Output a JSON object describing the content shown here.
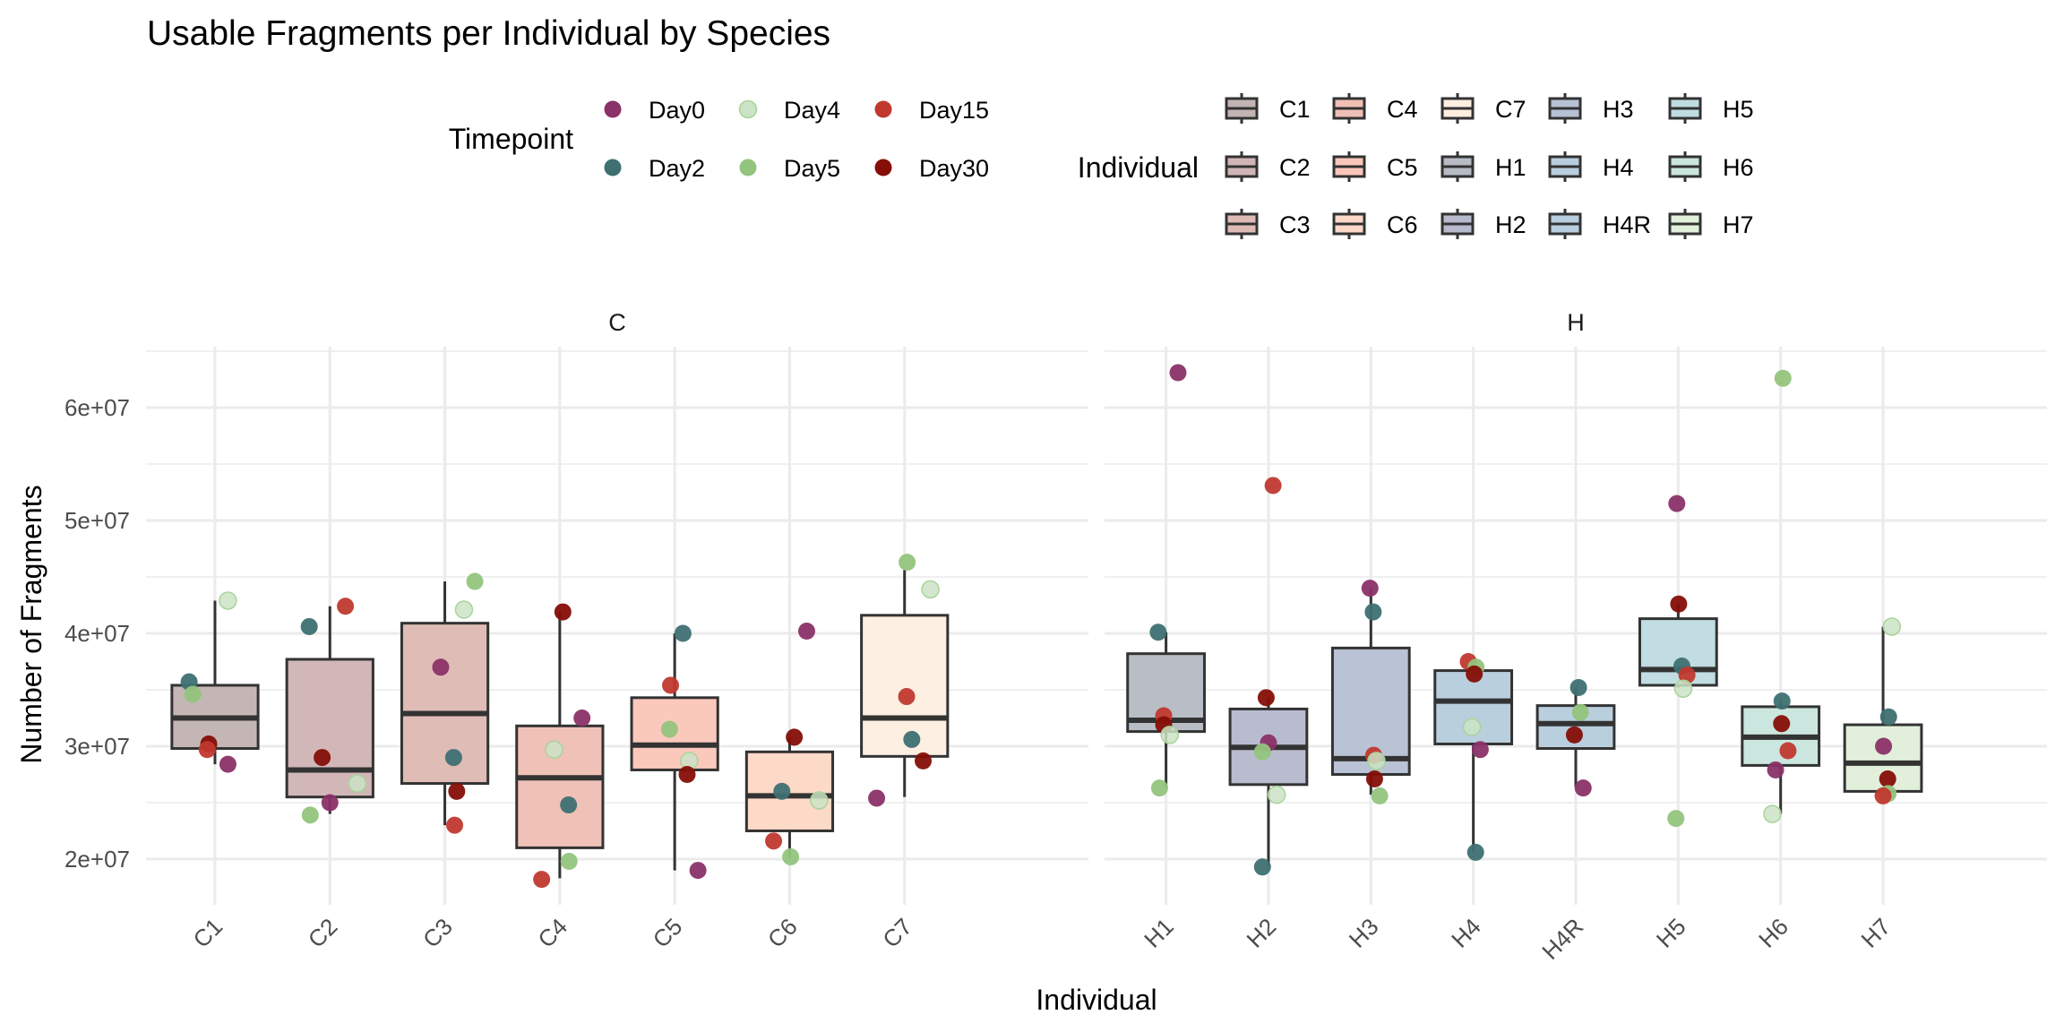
{
  "chart_data": {
    "type": "boxplot",
    "title": "Usable Fragments per Individual by Species",
    "xlabel": "Individual",
    "ylabel": "Number of Fragments",
    "ylim": [
      15950000,
      65400000
    ],
    "yticks": [
      20000000,
      30000000,
      40000000,
      50000000,
      60000000
    ],
    "ytick_labels": [
      "2e+07",
      "3e+07",
      "4e+07",
      "5e+07",
      "6e+07"
    ],
    "grid": true,
    "facets": [
      {
        "label": "C",
        "categories": [
          "C1",
          "C2",
          "C3",
          "C4",
          "C5",
          "C6",
          "C7"
        ]
      },
      {
        "label": "H",
        "categories": [
          "H1",
          "H2",
          "H3",
          "H4",
          "H4R",
          "H5",
          "H6",
          "H7"
        ]
      }
    ],
    "legends": [
      {
        "title": "Timepoint",
        "placement": "top",
        "entries": [
          {
            "label": "Day0",
            "color": "#8B3268"
          },
          {
            "label": "Day2",
            "color": "#3E7072"
          },
          {
            "label": "Day4",
            "color": "#CBE3C6"
          },
          {
            "label": "Day5",
            "color": "#93C47D"
          },
          {
            "label": "Day15",
            "color": "#C0392F"
          },
          {
            "label": "Day30",
            "color": "#850E07"
          }
        ]
      },
      {
        "title": "Individual",
        "placement": "top",
        "entries": [
          {
            "label": "C1",
            "color": "#C2B4B3"
          },
          {
            "label": "C2",
            "color": "#D1B5B6"
          },
          {
            "label": "C3",
            "color": "#DFBAB5"
          },
          {
            "label": "C4",
            "color": "#EFBFB5"
          },
          {
            "label": "C5",
            "color": "#FBC6BA"
          },
          {
            "label": "C6",
            "color": "#FDD8C6"
          },
          {
            "label": "C7",
            "color": "#FDEEE0"
          },
          {
            "label": "H1",
            "color": "#B6BBC4"
          },
          {
            "label": "H2",
            "color": "#B7BACD"
          },
          {
            "label": "H3",
            "color": "#B7C1D4"
          },
          {
            "label": "H4",
            "color": "#B8CDDD"
          },
          {
            "label": "H4R",
            "color": "#B8CDDD"
          },
          {
            "label": "H5",
            "color": "#BFDCE0"
          },
          {
            "label": "H6",
            "color": "#C9E5DD"
          },
          {
            "label": "H7",
            "color": "#E1F0DA"
          }
        ]
      }
    ],
    "boxes": [
      {
        "individual": "C1",
        "facet": "C",
        "whisker_low": 28.4,
        "q1": 29.8,
        "median": 32.5,
        "q3": 35.4,
        "whisker_high": 42.9
      },
      {
        "individual": "C2",
        "facet": "C",
        "whisker_low": 24.0,
        "q1": 25.5,
        "median": 27.9,
        "q3": 37.7,
        "whisker_high": 42.4
      },
      {
        "individual": "C3",
        "facet": "C",
        "whisker_low": 23.0,
        "q1": 26.7,
        "median": 32.9,
        "q3": 40.9,
        "whisker_high": 44.6
      },
      {
        "individual": "C4",
        "facet": "C",
        "whisker_low": 18.3,
        "q1": 21.0,
        "median": 27.2,
        "q3": 31.8,
        "whisker_high": 41.9
      },
      {
        "individual": "C5",
        "facet": "C",
        "whisker_low": 19.0,
        "q1": 27.9,
        "median": 30.1,
        "q3": 34.3,
        "whisker_high": 40.0
      },
      {
        "individual": "C6",
        "facet": "C",
        "whisker_low": 20.1,
        "q1": 22.5,
        "median": 25.6,
        "q3": 29.5,
        "whisker_high": 30.8
      },
      {
        "individual": "C7",
        "facet": "C",
        "whisker_low": 25.5,
        "q1": 29.1,
        "median": 32.5,
        "q3": 41.6,
        "whisker_high": 45.6
      },
      {
        "individual": "H1",
        "facet": "H",
        "whisker_low": 26.4,
        "q1": 31.3,
        "median": 32.3,
        "q3": 38.2,
        "whisker_high": 40.1
      },
      {
        "individual": "H2",
        "facet": "H",
        "whisker_low": 19.4,
        "q1": 26.6,
        "median": 29.9,
        "q3": 33.3,
        "whisker_high": 34.3
      },
      {
        "individual": "H3",
        "facet": "H",
        "whisker_low": 25.7,
        "q1": 27.5,
        "median": 28.9,
        "q3": 38.7,
        "whisker_high": 44.0
      },
      {
        "individual": "H4",
        "facet": "H",
        "whisker_low": 20.6,
        "q1": 30.2,
        "median": 34.0,
        "q3": 36.7,
        "whisker_high": 37.5
      },
      {
        "individual": "H4R",
        "facet": "H",
        "whisker_low": 26.4,
        "q1": 29.8,
        "median": 32.0,
        "q3": 33.6,
        "whisker_high": 35.2
      },
      {
        "individual": "H5",
        "facet": "H",
        "whisker_low": 35.2,
        "q1": 35.4,
        "median": 36.8,
        "q3": 41.3,
        "whisker_high": 42.6
      },
      {
        "individual": "H6",
        "facet": "H",
        "whisker_low": 24.0,
        "q1": 28.3,
        "median": 30.8,
        "q3": 33.5,
        "whisker_high": 34.0
      },
      {
        "individual": "H7",
        "facet": "H",
        "whisker_low": 25.7,
        "q1": 26.0,
        "median": 28.5,
        "q3": 31.9,
        "whisker_high": 40.6
      }
    ],
    "value_unit": "millions of fragments",
    "points": [
      {
        "individual": "C1",
        "timepoint": "Day4",
        "value": 42.9,
        "jitter": 0.25
      },
      {
        "individual": "C1",
        "timepoint": "Day2",
        "value": 35.7,
        "jitter": -0.5
      },
      {
        "individual": "C1",
        "timepoint": "Day5",
        "value": 34.6,
        "jitter": -0.43
      },
      {
        "individual": "C1",
        "timepoint": "Day30",
        "value": 30.2,
        "jitter": -0.12
      },
      {
        "individual": "C1",
        "timepoint": "Day15",
        "value": 29.7,
        "jitter": -0.15
      },
      {
        "individual": "C1",
        "timepoint": "Day0",
        "value": 28.4,
        "jitter": 0.25
      },
      {
        "individual": "C2",
        "timepoint": "Day15",
        "value": 42.4,
        "jitter": 0.3
      },
      {
        "individual": "C2",
        "timepoint": "Day2",
        "value": 40.6,
        "jitter": -0.4
      },
      {
        "individual": "C2",
        "timepoint": "Day30",
        "value": 29.0,
        "jitter": -0.15
      },
      {
        "individual": "C2",
        "timepoint": "Day4",
        "value": 26.7,
        "jitter": 0.53
      },
      {
        "individual": "C2",
        "timepoint": "Day0",
        "value": 25.0,
        "jitter": 0.0
      },
      {
        "individual": "C2",
        "timepoint": "Day5",
        "value": 23.9,
        "jitter": -0.38
      },
      {
        "individual": "C3",
        "timepoint": "Day5",
        "value": 44.6,
        "jitter": 0.58
      },
      {
        "individual": "C3",
        "timepoint": "Day4",
        "value": 42.1,
        "jitter": 0.37
      },
      {
        "individual": "C3",
        "timepoint": "Day0",
        "value": 37.0,
        "jitter": -0.08
      },
      {
        "individual": "C3",
        "timepoint": "Day2",
        "value": 29.0,
        "jitter": 0.17
      },
      {
        "individual": "C3",
        "timepoint": "Day30",
        "value": 26.0,
        "jitter": 0.23
      },
      {
        "individual": "C3",
        "timepoint": "Day15",
        "value": 23.0,
        "jitter": 0.19
      },
      {
        "individual": "C4",
        "timepoint": "Day30",
        "value": 41.9,
        "jitter": 0.06
      },
      {
        "individual": "C4",
        "timepoint": "Day0",
        "value": 32.5,
        "jitter": 0.43
      },
      {
        "individual": "C4",
        "timepoint": "Day4",
        "value": 29.7,
        "jitter": -0.11
      },
      {
        "individual": "C4",
        "timepoint": "Day2",
        "value": 24.8,
        "jitter": 0.17
      },
      {
        "individual": "C4",
        "timepoint": "Day5",
        "value": 19.8,
        "jitter": 0.18
      },
      {
        "individual": "C4",
        "timepoint": "Day15",
        "value": 18.2,
        "jitter": -0.35
      },
      {
        "individual": "C5",
        "timepoint": "Day2",
        "value": 40.0,
        "jitter": 0.16
      },
      {
        "individual": "C5",
        "timepoint": "Day15",
        "value": 35.4,
        "jitter": -0.08
      },
      {
        "individual": "C5",
        "timepoint": "Day5",
        "value": 31.5,
        "jitter": -0.1
      },
      {
        "individual": "C5",
        "timepoint": "Day4",
        "value": 28.7,
        "jitter": 0.28
      },
      {
        "individual": "C5",
        "timepoint": "Day30",
        "value": 27.5,
        "jitter": 0.24
      },
      {
        "individual": "C5",
        "timepoint": "Day0",
        "value": 19.0,
        "jitter": 0.45
      },
      {
        "individual": "C6",
        "timepoint": "Day0",
        "value": 40.2,
        "jitter": 0.33
      },
      {
        "individual": "C6",
        "timepoint": "Day30",
        "value": 30.8,
        "jitter": 0.09
      },
      {
        "individual": "C6",
        "timepoint": "Day2",
        "value": 26.0,
        "jitter": -0.15
      },
      {
        "individual": "C6",
        "timepoint": "Day4",
        "value": 25.2,
        "jitter": 0.57
      },
      {
        "individual": "C6",
        "timepoint": "Day15",
        "value": 21.6,
        "jitter": -0.31
      },
      {
        "individual": "C6",
        "timepoint": "Day5",
        "value": 20.2,
        "jitter": 0.02
      },
      {
        "individual": "C7",
        "timepoint": "Day5",
        "value": 46.3,
        "jitter": 0.05
      },
      {
        "individual": "C7",
        "timepoint": "Day4",
        "value": 43.9,
        "jitter": 0.5
      },
      {
        "individual": "C7",
        "timepoint": "Day15",
        "value": 34.4,
        "jitter": 0.04
      },
      {
        "individual": "C7",
        "timepoint": "Day2",
        "value": 30.6,
        "jitter": 0.14
      },
      {
        "individual": "C7",
        "timepoint": "Day30",
        "value": 28.7,
        "jitter": 0.36
      },
      {
        "individual": "C7",
        "timepoint": "Day0",
        "value": 25.4,
        "jitter": -0.54
      },
      {
        "individual": "H1",
        "timepoint": "Day0",
        "value": 63.1,
        "jitter": 0.26
      },
      {
        "individual": "H1",
        "timepoint": "Day2",
        "value": 40.1,
        "jitter": -0.17
      },
      {
        "individual": "H1",
        "timepoint": "Day15",
        "value": 32.7,
        "jitter": -0.05
      },
      {
        "individual": "H1",
        "timepoint": "Day30",
        "value": 31.9,
        "jitter": -0.05
      },
      {
        "individual": "H1",
        "timepoint": "Day4",
        "value": 31.0,
        "jitter": 0.08
      },
      {
        "individual": "H1",
        "timepoint": "Day5",
        "value": 26.3,
        "jitter": -0.14
      },
      {
        "individual": "H2",
        "timepoint": "Day15",
        "value": 53.1,
        "jitter": 0.1
      },
      {
        "individual": "H2",
        "timepoint": "Day30",
        "value": 34.3,
        "jitter": -0.05
      },
      {
        "individual": "H2",
        "timepoint": "Day0",
        "value": 30.3,
        "jitter": 0.0
      },
      {
        "individual": "H2",
        "timepoint": "Day5",
        "value": 29.5,
        "jitter": -0.13
      },
      {
        "individual": "H2",
        "timepoint": "Day4",
        "value": 25.7,
        "jitter": 0.18
      },
      {
        "individual": "H2",
        "timepoint": "Day2",
        "value": 19.3,
        "jitter": -0.13
      },
      {
        "individual": "H3",
        "timepoint": "Day0",
        "value": 44.0,
        "jitter": -0.02
      },
      {
        "individual": "H3",
        "timepoint": "Day2",
        "value": 41.9,
        "jitter": 0.05
      },
      {
        "individual": "H3",
        "timepoint": "Day15",
        "value": 29.2,
        "jitter": 0.06
      },
      {
        "individual": "H3",
        "timepoint": "Day4",
        "value": 28.7,
        "jitter": 0.12
      },
      {
        "individual": "H3",
        "timepoint": "Day30",
        "value": 27.1,
        "jitter": 0.08
      },
      {
        "individual": "H3",
        "timepoint": "Day5",
        "value": 25.6,
        "jitter": 0.19
      },
      {
        "individual": "H4",
        "timepoint": "Day15",
        "value": 37.5,
        "jitter": -0.11
      },
      {
        "individual": "H4",
        "timepoint": "Day5",
        "value": 37.0,
        "jitter": 0.06
      },
      {
        "individual": "H4",
        "timepoint": "Day30",
        "value": 36.4,
        "jitter": 0.02
      },
      {
        "individual": "H4",
        "timepoint": "Day4",
        "value": 31.7,
        "jitter": -0.03
      },
      {
        "individual": "H4",
        "timepoint": "Day0",
        "value": 29.7,
        "jitter": 0.15
      },
      {
        "individual": "H4",
        "timepoint": "Day2",
        "value": 20.6,
        "jitter": 0.05
      },
      {
        "individual": "H4R",
        "timepoint": "Day2",
        "value": 35.2,
        "jitter": 0.06
      },
      {
        "individual": "H4R",
        "timepoint": "Day5",
        "value": 33.0,
        "jitter": 0.1
      },
      {
        "individual": "H4R",
        "timepoint": "Day30",
        "value": 31.0,
        "jitter": -0.03
      },
      {
        "individual": "H4R",
        "timepoint": "Day0",
        "value": 26.3,
        "jitter": 0.16
      },
      {
        "individual": "H5",
        "timepoint": "Day0",
        "value": 51.5,
        "jitter": -0.03
      },
      {
        "individual": "H5",
        "timepoint": "Day30",
        "value": 42.6,
        "jitter": 0.01
      },
      {
        "individual": "H5",
        "timepoint": "Day2",
        "value": 37.1,
        "jitter": 0.08
      },
      {
        "individual": "H5",
        "timepoint": "Day15",
        "value": 36.3,
        "jitter": 0.19
      },
      {
        "individual": "H5",
        "timepoint": "Day4",
        "value": 35.1,
        "jitter": 0.11
      },
      {
        "individual": "H5",
        "timepoint": "Day5",
        "value": 23.6,
        "jitter": -0.05
      },
      {
        "individual": "H6",
        "timepoint": "Day5",
        "value": 62.6,
        "jitter": 0.05
      },
      {
        "individual": "H6",
        "timepoint": "Day2",
        "value": 34.0,
        "jitter": 0.03
      },
      {
        "individual": "H6",
        "timepoint": "Day30",
        "value": 32.0,
        "jitter": 0.02
      },
      {
        "individual": "H6",
        "timepoint": "Day15",
        "value": 29.6,
        "jitter": 0.16
      },
      {
        "individual": "H6",
        "timepoint": "Day0",
        "value": 27.9,
        "jitter": -0.11
      },
      {
        "individual": "H6",
        "timepoint": "Day4",
        "value": 24.0,
        "jitter": -0.18
      },
      {
        "individual": "H7",
        "timepoint": "Day4",
        "value": 40.6,
        "jitter": 0.19
      },
      {
        "individual": "H7",
        "timepoint": "Day2",
        "value": 32.6,
        "jitter": 0.12
      },
      {
        "individual": "H7",
        "timepoint": "Day0",
        "value": 30.0,
        "jitter": 0.01
      },
      {
        "individual": "H7",
        "timepoint": "Day30",
        "value": 27.1,
        "jitter": 0.1
      },
      {
        "individual": "H7",
        "timepoint": "Day5",
        "value": 25.8,
        "jitter": 0.11
      },
      {
        "individual": "H7",
        "timepoint": "Day15",
        "value": 25.6,
        "jitter": 0.0
      }
    ]
  }
}
